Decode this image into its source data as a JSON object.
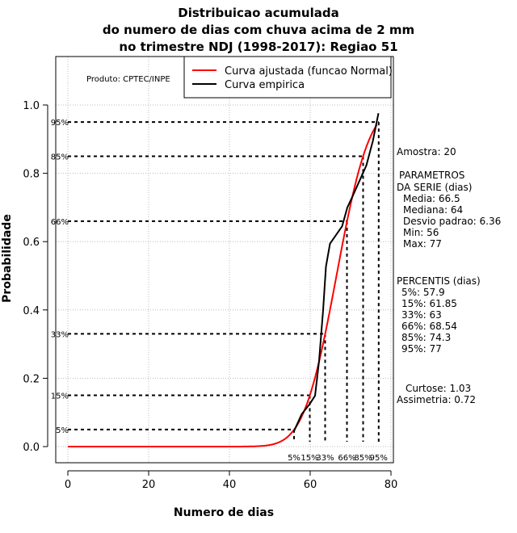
{
  "chart_data": {
    "type": "line",
    "title": [
      "Distribuicao acumulada",
      "do numero de dias com chuva acima de 2 mm",
      "no trimestre NDJ (1998-2017): Regiao 51"
    ],
    "xlabel": "Numero de dias",
    "ylabel": "Probabilidade",
    "xlim": [
      -3,
      80.5
    ],
    "ylim": [
      -0.045,
      1.145
    ],
    "xticks": [
      0,
      20,
      40,
      60,
      80
    ],
    "yticks": [
      0.0,
      0.2,
      0.4,
      0.6,
      0.8,
      1.0
    ],
    "ytick_labels": [
      "0.0",
      "0.2",
      "0.4",
      "0.6",
      "0.8",
      "1.0"
    ],
    "grid": true,
    "legend_placement": "top-right",
    "credit": "Produto: CPTEC/INPE",
    "series": [
      {
        "name": "Curva ajustada (funcao Normal)",
        "color": "#ff0000",
        "kind": "normal",
        "mean": 66.5,
        "sd": 6.36,
        "x_range": [
          0,
          76.5
        ]
      },
      {
        "name": "Curva empirica",
        "color": "#000000",
        "kind": "empirical",
        "x": [
          55.9,
          57.9,
          59.9,
          61.2,
          62.2,
          63.2,
          63.9,
          64.9,
          67.9,
          69.2,
          70.5,
          73.9,
          75.5,
          76.9
        ],
        "y": [
          0.043,
          0.095,
          0.125,
          0.149,
          0.251,
          0.4,
          0.527,
          0.594,
          0.645,
          0.7,
          0.733,
          0.823,
          0.894,
          0.976
        ]
      }
    ],
    "percentile_lines": [
      {
        "label": "5%",
        "p": 0.05,
        "x": 56.0
      },
      {
        "label": "15%",
        "p": 0.15,
        "x": 59.9
      },
      {
        "label": "33%",
        "p": 0.33,
        "x": 63.7
      },
      {
        "label": "66%",
        "p": 0.66,
        "x": 69.1
      },
      {
        "label": "85%",
        "p": 0.85,
        "x": 73.1
      },
      {
        "label": "95%",
        "p": 0.95,
        "x": 76.96
      }
    ]
  },
  "side_panel": {
    "amostra": "Amostra: 20",
    "params_title1": " PARAMETROS",
    "params_title2": "DA SERIE (dias)",
    "params": [
      "Media: 66.5",
      "Mediana: 64",
      "Desvio padrao: 6.36",
      "Min: 56",
      "Max: 77"
    ],
    "percentis_title": "PERCENTIS (dias)",
    "percentis": [
      "5%: 57.9",
      "15%: 61.85",
      "33%: 63",
      "66%: 68.54",
      "85%: 74.3",
      "95%: 77"
    ],
    "curtose": "Curtose: 1.03",
    "assimetria": "Assimetria: 0.72"
  }
}
